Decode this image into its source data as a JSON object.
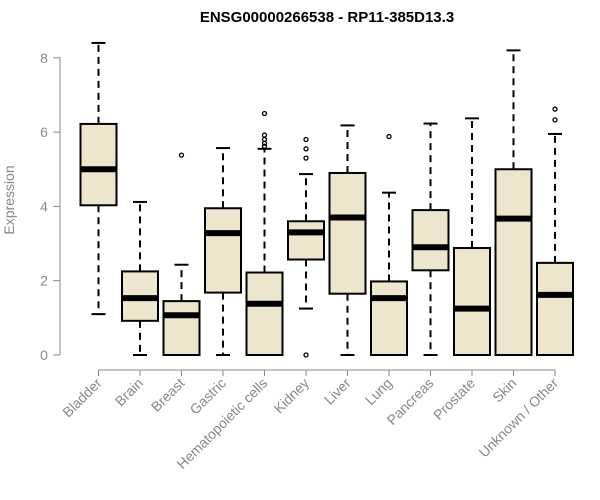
{
  "chart_data": {
    "type": "boxplot",
    "title": "ENSG00000266538 - RP11-385D13.3",
    "xlabel": "",
    "ylabel": "Expression",
    "ylim": [
      0,
      8.5
    ],
    "yticks": [
      0,
      2,
      4,
      6,
      8
    ],
    "box_color": "#ede5cc",
    "categories": [
      "Bladder",
      "Brain",
      "Breast",
      "Gastric",
      "Hematopoietic cells",
      "Kidney",
      "Liver",
      "Lung",
      "Pancreas",
      "Prostate",
      "Skin",
      "Unknown / Other"
    ],
    "boxes": [
      {
        "name": "Bladder",
        "whisker_low": 1.1,
        "q1": 4.03,
        "median": 5.0,
        "q3": 6.22,
        "whisker_high": 8.4,
        "outliers": []
      },
      {
        "name": "Brain",
        "whisker_low": 0.0,
        "q1": 0.92,
        "median": 1.53,
        "q3": 2.25,
        "whisker_high": 4.12,
        "outliers": []
      },
      {
        "name": "Breast",
        "whisker_low": 0.0,
        "q1": 0.0,
        "median": 1.07,
        "q3": 1.45,
        "whisker_high": 2.43,
        "outliers": [
          5.38
        ]
      },
      {
        "name": "Gastric",
        "whisker_low": 0.0,
        "q1": 1.68,
        "median": 3.28,
        "q3": 3.95,
        "whisker_high": 5.57,
        "outliers": []
      },
      {
        "name": "Hematopoietic cells",
        "whisker_low": 0.0,
        "q1": 0.0,
        "median": 1.38,
        "q3": 2.22,
        "whisker_high": 5.55,
        "outliers": [
          5.62,
          5.7,
          5.8,
          5.92,
          6.5
        ]
      },
      {
        "name": "Kidney",
        "whisker_low": 1.25,
        "q1": 2.57,
        "median": 3.3,
        "q3": 3.6,
        "whisker_high": 4.87,
        "outliers": [
          5.3,
          5.55,
          5.8,
          0.0
        ]
      },
      {
        "name": "Liver",
        "whisker_low": 0.0,
        "q1": 1.65,
        "median": 3.7,
        "q3": 4.9,
        "whisker_high": 6.18,
        "outliers": []
      },
      {
        "name": "Lung",
        "whisker_low": 0.0,
        "q1": 0.0,
        "median": 1.53,
        "q3": 1.98,
        "whisker_high": 4.37,
        "outliers": [
          5.88
        ]
      },
      {
        "name": "Pancreas",
        "whisker_low": 0.0,
        "q1": 2.28,
        "median": 2.9,
        "q3": 3.9,
        "whisker_high": 6.23,
        "outliers": []
      },
      {
        "name": "Prostate",
        "whisker_low": 0.0,
        "q1": 0.0,
        "median": 1.25,
        "q3": 2.88,
        "whisker_high": 6.37,
        "outliers": []
      },
      {
        "name": "Skin",
        "whisker_low": 0.0,
        "q1": 0.0,
        "median": 3.67,
        "q3": 5.0,
        "whisker_high": 8.2,
        "outliers": []
      },
      {
        "name": "Unknown / Other",
        "whisker_low": 0.0,
        "q1": 0.0,
        "median": 1.62,
        "q3": 2.48,
        "whisker_high": 5.95,
        "outliers": [
          6.33,
          6.62
        ]
      }
    ]
  }
}
